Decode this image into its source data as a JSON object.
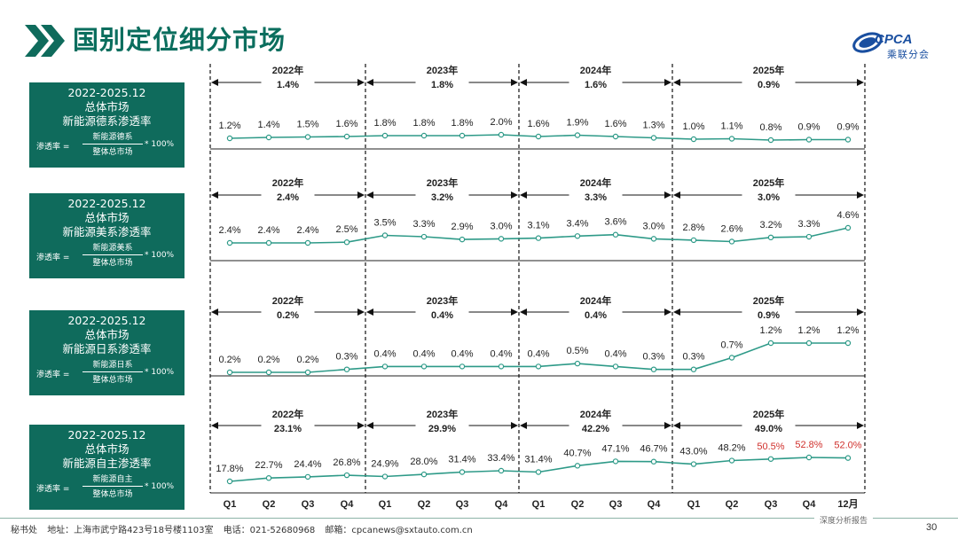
{
  "page_title": "国别定位细分市场",
  "logo": {
    "text": "CPCA",
    "subtitle": "乘联分会"
  },
  "panels": [
    {
      "line1": "2022-2025.12",
      "line2": "总体市场",
      "line3": "新能源德系渗透率",
      "lhs": "渗透率 =",
      "numerator": "新能源德系",
      "denominator": "整体总市场",
      "mult": "* 100%"
    },
    {
      "line1": "2022-2025.12",
      "line2": "总体市场",
      "line3": "新能源美系渗透率",
      "lhs": "渗透率 =",
      "numerator": "新能源美系",
      "denominator": "整体总市场",
      "mult": "* 100%"
    },
    {
      "line1": "2022-2025.12",
      "line2": "总体市场",
      "line3": "新能源日系渗透率",
      "lhs": "渗透率 =",
      "numerator": "新能源日系",
      "denominator": "整体总市场",
      "mult": "* 100%"
    },
    {
      "line1": "2022-2025.12",
      "line2": "总体市场",
      "line3": "新能源自主渗透率",
      "lhs": "渗透率 =",
      "numerator": "新能源自主",
      "denominator": "整体总市场",
      "mult": "* 100%"
    }
  ],
  "chart_data": {
    "type": "line",
    "categories": [
      "Q1",
      "Q2",
      "Q3",
      "Q4",
      "Q1",
      "Q2",
      "Q3",
      "Q4",
      "Q1",
      "Q2",
      "Q3",
      "Q4",
      "Q1",
      "Q2",
      "Q3",
      "Q4",
      "12月"
    ],
    "years": [
      "2022年",
      "2023年",
      "2024年",
      "2025年"
    ],
    "line_color": "#2e9a88",
    "highlight_color": "#d0312d",
    "series": [
      {
        "annual": [
          "1.4%",
          "1.8%",
          "1.6%",
          "0.9%"
        ],
        "values": [
          1.2,
          1.4,
          1.5,
          1.6,
          1.8,
          1.8,
          1.8,
          2.0,
          1.6,
          1.9,
          1.6,
          1.3,
          1.0,
          1.1,
          0.8,
          0.9,
          0.9
        ],
        "labels": [
          "1.2%",
          "1.4%",
          "1.5%",
          "1.6%",
          "1.8%",
          "1.8%",
          "1.8%",
          "2.0%",
          "1.6%",
          "1.9%",
          "1.6%",
          "1.3%",
          "1.0%",
          "1.1%",
          "0.8%",
          "0.9%",
          "0.9%"
        ],
        "highlight": []
      },
      {
        "annual": [
          "2.4%",
          "3.2%",
          "3.3%",
          "3.0%"
        ],
        "values": [
          2.4,
          2.4,
          2.4,
          2.5,
          3.5,
          3.3,
          2.9,
          3.0,
          3.1,
          3.4,
          3.6,
          3.0,
          2.8,
          2.6,
          3.2,
          3.3,
          4.6
        ],
        "labels": [
          "2.4%",
          "2.4%",
          "2.4%",
          "2.5%",
          "3.5%",
          "3.3%",
          "2.9%",
          "3.0%",
          "3.1%",
          "3.4%",
          "3.6%",
          "3.0%",
          "2.8%",
          "2.6%",
          "3.2%",
          "3.3%",
          "4.6%"
        ],
        "highlight": []
      },
      {
        "annual": [
          "0.2%",
          "0.4%",
          "0.4%",
          "0.9%"
        ],
        "values": [
          0.2,
          0.2,
          0.2,
          0.3,
          0.4,
          0.4,
          0.4,
          0.4,
          0.4,
          0.5,
          0.4,
          0.3,
          0.3,
          0.7,
          1.2,
          1.2,
          1.2
        ],
        "labels": [
          "0.2%",
          "0.2%",
          "0.2%",
          "0.3%",
          "0.4%",
          "0.4%",
          "0.4%",
          "0.4%",
          "0.4%",
          "0.5%",
          "0.4%",
          "0.3%",
          "0.3%",
          "0.7%",
          "1.2%",
          "1.2%",
          "1.2%"
        ],
        "highlight": []
      },
      {
        "annual": [
          "23.1%",
          "29.9%",
          "42.2%",
          "49.0%"
        ],
        "values": [
          17.8,
          22.7,
          24.4,
          26.8,
          24.9,
          28.0,
          31.4,
          33.4,
          31.4,
          40.7,
          47.1,
          46.7,
          43.0,
          48.2,
          50.5,
          52.8,
          52.0
        ],
        "labels": [
          "17.8%",
          "22.7%",
          "24.4%",
          "26.8%",
          "24.9%",
          "28.0%",
          "31.4%",
          "33.4%",
          "31.4%",
          "40.7%",
          "47.1%",
          "46.7%",
          "43.0%",
          "48.2%",
          "50.5%",
          "52.8%",
          "52.0%"
        ],
        "highlight": [
          14,
          15,
          16
        ]
      }
    ]
  },
  "footer": {
    "org": "秘书处",
    "address": "地址：上海市武宁路423号18号楼1103室",
    "phone": "电话：021-52680968",
    "email": "邮箱：cpcanews@sxtauto.com.cn",
    "tag": "深度分析报告",
    "page_number": "30"
  }
}
